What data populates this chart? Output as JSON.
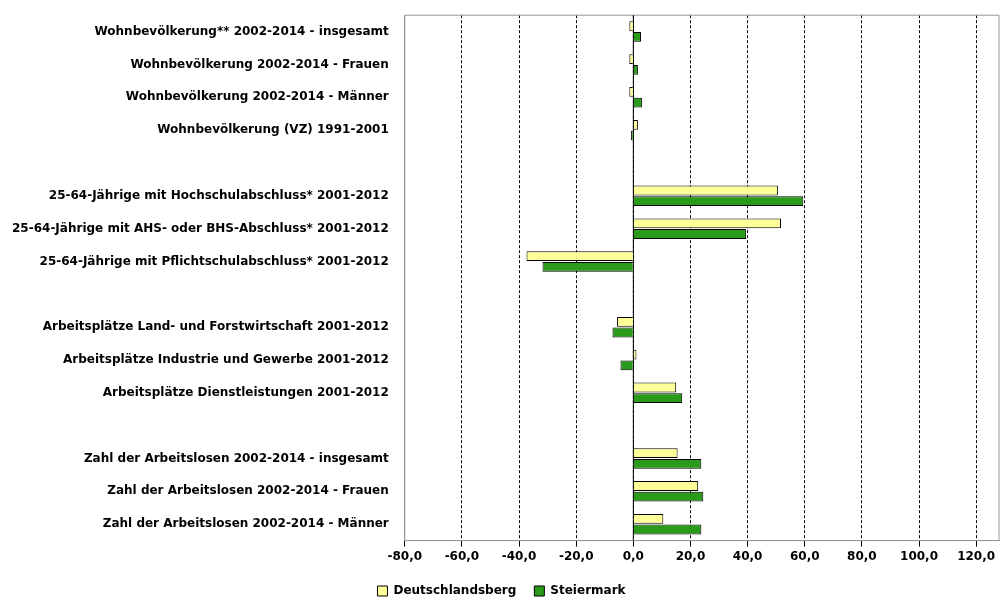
{
  "chart_data": {
    "type": "bar",
    "orientation": "horizontal",
    "categories": [
      "Wohnbevölkerung** 2002-2014 - insgesamt",
      "Wohnbevölkerung 2002-2014 - Frauen",
      "Wohnbevölkerung 2002-2014 - Männer",
      "Wohnbevölkerung (VZ) 1991-2001",
      null,
      "25-64-Jährige mit Hochschulabschluss* 2001-2012",
      "25-64-Jährige mit AHS- oder BHS-Abschluss* 2001-2012",
      "25-64-Jährige mit Pflichtschulabschluss* 2001-2012",
      null,
      "Arbeitsplätze Land- und Forstwirtschaft 2001-2012",
      "Arbeitsplätze Industrie und Gewerbe 2001-2012",
      "Arbeitsplätze Dienstleistungen 2001-2012",
      null,
      "Zahl der Arbeitslosen 2002-2014 - insgesamt",
      "Zahl der Arbeitslosen 2002-2014 - Frauen",
      "Zahl der Arbeitslosen 2002-2014 - Männer"
    ],
    "series": [
      {
        "name": "Deutschlandsberg",
        "color": "#ffff99",
        "values": [
          -1.4,
          -1.4,
          -1.4,
          1.6,
          null,
          50.6,
          51.7,
          -37.4,
          null,
          -5.7,
          1.1,
          15.0,
          null,
          15.5,
          22.7,
          10.5
        ]
      },
      {
        "name": "Steiermark",
        "color": "#2a9a1a",
        "values": [
          2.7,
          1.6,
          3.1,
          -0.8,
          null,
          59.5,
          39.5,
          -31.8,
          null,
          -7.3,
          -4.5,
          17.1,
          null,
          23.8,
          24.5,
          23.8
        ]
      }
    ],
    "xlim": [
      -80,
      128
    ],
    "xticks": [
      {
        "value": -80,
        "label": "-80,0"
      },
      {
        "value": -60,
        "label": "-60,0"
      },
      {
        "value": -40,
        "label": "-40,0"
      },
      {
        "value": -20,
        "label": "-20,0"
      },
      {
        "value": 0,
        "label": "0,0"
      },
      {
        "value": 20,
        "label": "20,0"
      },
      {
        "value": 40,
        "label": "40,0"
      },
      {
        "value": 60,
        "label": "60,0"
      },
      {
        "value": 80,
        "label": "80,0"
      },
      {
        "value": 100,
        "label": "100,0"
      },
      {
        "value": 120,
        "label": "120,0"
      }
    ],
    "grid": "x",
    "legend": "bottom"
  }
}
